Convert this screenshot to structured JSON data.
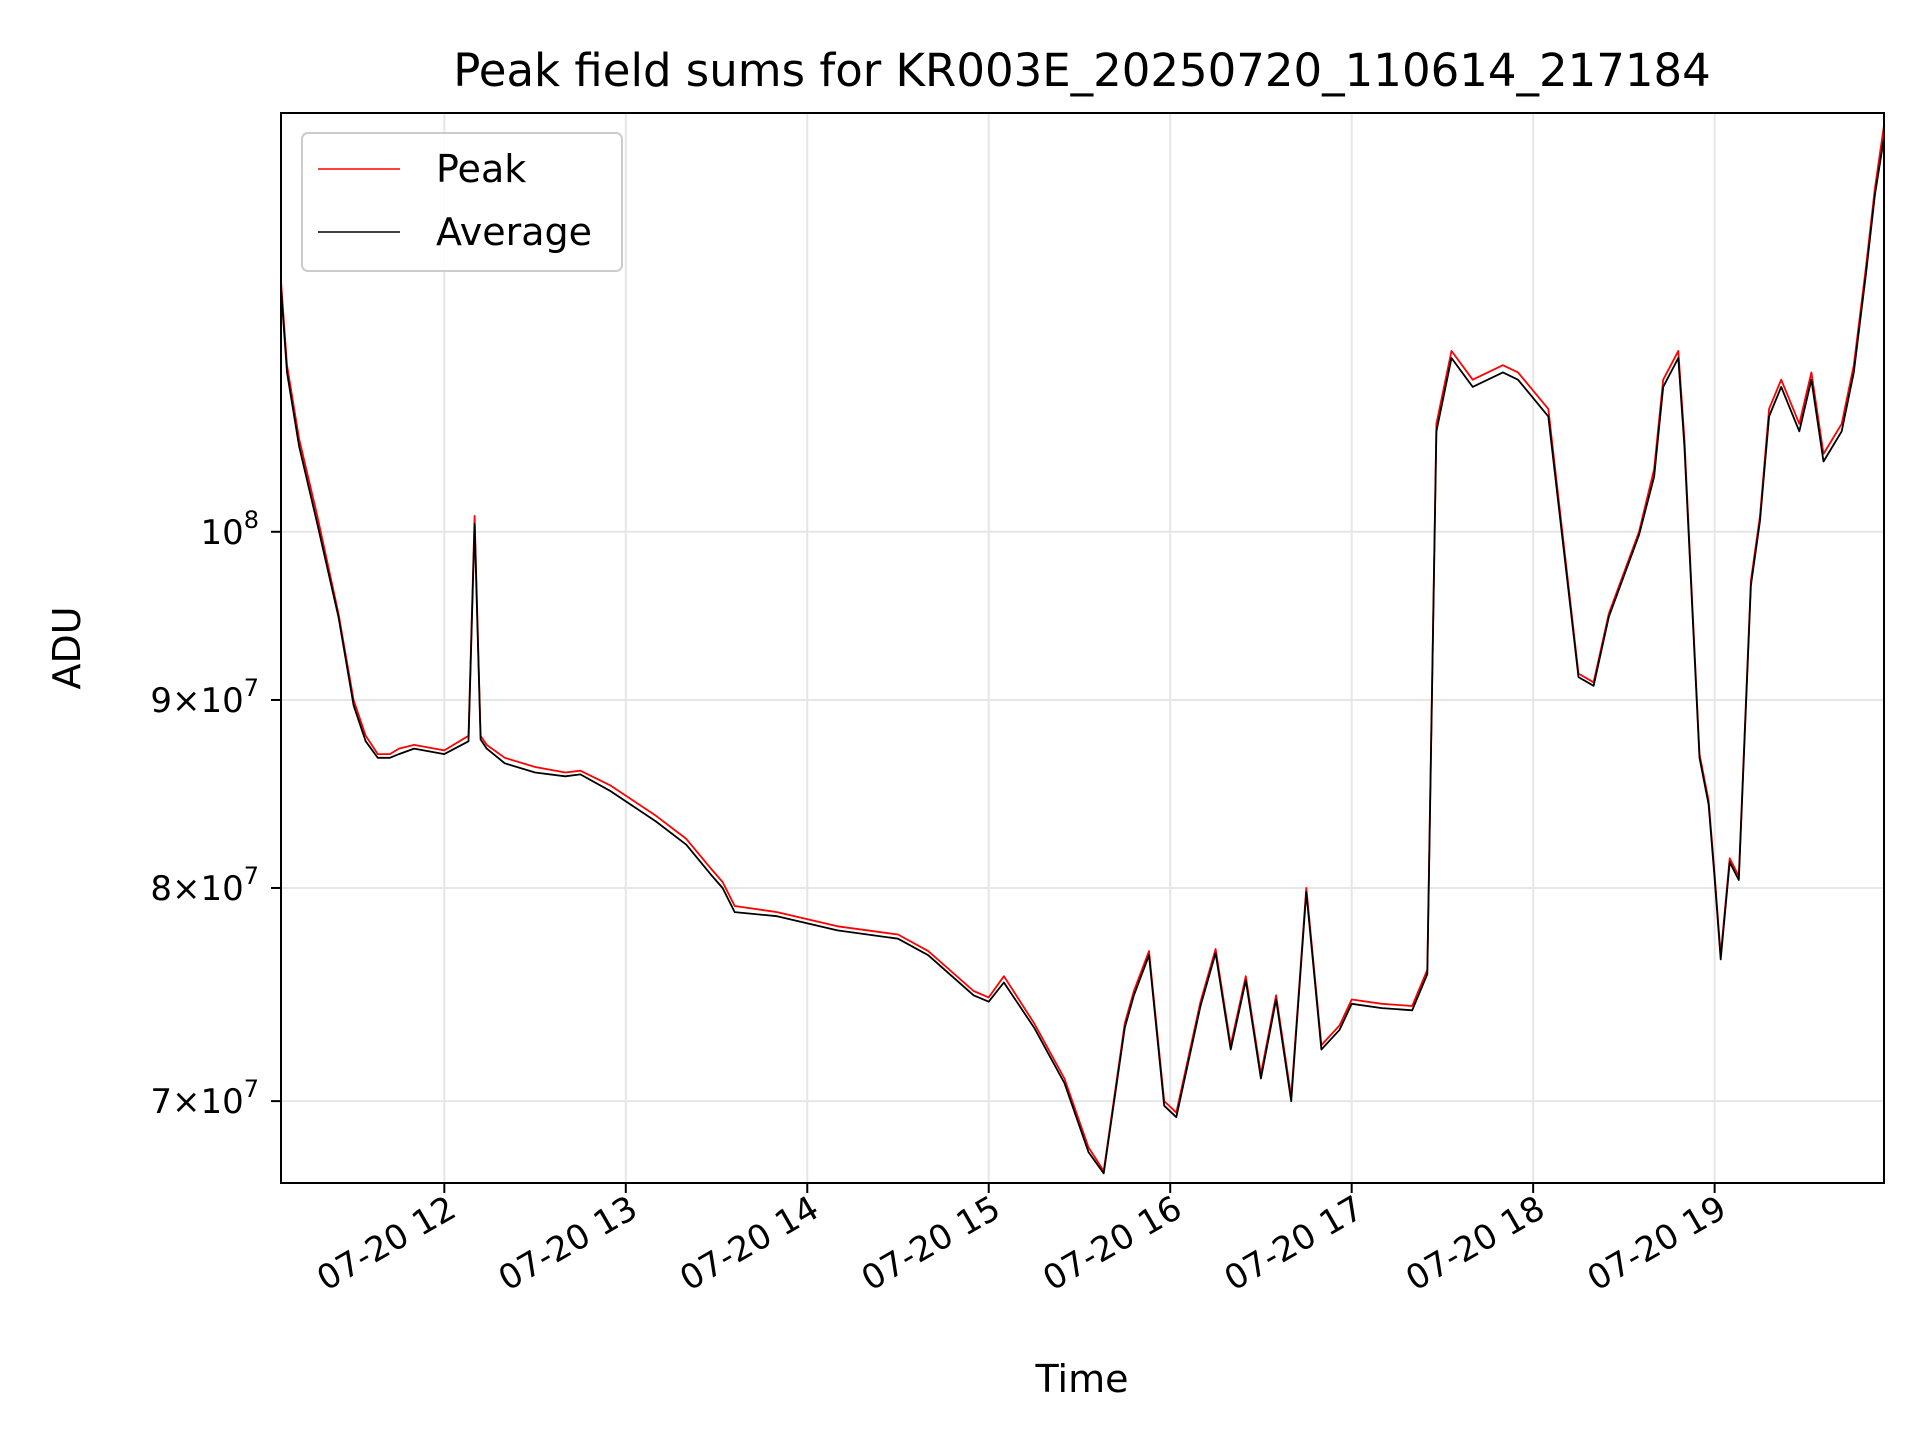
{
  "chart_data": {
    "type": "line",
    "title": "Peak field sums for KR003E_20250720_110614_217184",
    "xlabel": "Time",
    "ylabel": "ADU",
    "yscale": "log",
    "grid": true,
    "legend_position": "upper left",
    "xlim": [
      "07-20 11:06",
      "07-20 19:56"
    ],
    "ylim": [
      66500000,
      130000000
    ],
    "x_ticks": [
      {
        "value": "07-20 12:00",
        "label": "07-20 12"
      },
      {
        "value": "07-20 13:00",
        "label": "07-20 13"
      },
      {
        "value": "07-20 14:00",
        "label": "07-20 14"
      },
      {
        "value": "07-20 15:00",
        "label": "07-20 15"
      },
      {
        "value": "07-20 16:00",
        "label": "07-20 16"
      },
      {
        "value": "07-20 17:00",
        "label": "07-20 17"
      },
      {
        "value": "07-20 18:00",
        "label": "07-20 18"
      },
      {
        "value": "07-20 19:00",
        "label": "07-20 19"
      }
    ],
    "y_ticks": [
      {
        "value": 70000000,
        "label_base": "7×10",
        "label_exp": "7"
      },
      {
        "value": 80000000,
        "label_base": "8×10",
        "label_exp": "7"
      },
      {
        "value": 90000000,
        "label_base": "9×10",
        "label_exp": "7"
      },
      {
        "value": 100000000,
        "label_base": "10",
        "label_exp": "8"
      }
    ],
    "x": [
      "07-20 11:06",
      "07-20 11:08",
      "07-20 11:12",
      "07-20 11:18",
      "07-20 11:25",
      "07-20 11:30",
      "07-20 11:34",
      "07-20 11:38",
      "07-20 11:42",
      "07-20 11:45",
      "07-20 11:50",
      "07-20 12:00",
      "07-20 12:08",
      "07-20 12:10",
      "07-20 12:12",
      "07-20 12:14",
      "07-20 12:20",
      "07-20 12:30",
      "07-20 12:40",
      "07-20 12:45",
      "07-20 12:55",
      "07-20 13:10",
      "07-20 13:20",
      "07-20 13:28",
      "07-20 13:32",
      "07-20 13:36",
      "07-20 13:50",
      "07-20 14:10",
      "07-20 14:30",
      "07-20 14:40",
      "07-20 14:55",
      "07-20 15:00",
      "07-20 15:05",
      "07-20 15:15",
      "07-20 15:25",
      "07-20 15:33",
      "07-20 15:38",
      "07-20 15:45",
      "07-20 15:48",
      "07-20 15:53",
      "07-20 15:58",
      "07-20 16:02",
      "07-20 16:10",
      "07-20 16:15",
      "07-20 16:20",
      "07-20 16:25",
      "07-20 16:30",
      "07-20 16:35",
      "07-20 16:40",
      "07-20 16:45",
      "07-20 16:50",
      "07-20 16:56",
      "07-20 17:00",
      "07-20 17:10",
      "07-20 17:20",
      "07-20 17:25",
      "07-20 17:28",
      "07-20 17:33",
      "07-20 17:40",
      "07-20 17:50",
      "07-20 17:55",
      "07-20 18:05",
      "07-20 18:15",
      "07-20 18:20",
      "07-20 18:25",
      "07-20 18:35",
      "07-20 18:40",
      "07-20 18:43",
      "07-20 18:48",
      "07-20 18:50",
      "07-20 18:55",
      "07-20 18:58",
      "07-20 19:00",
      "07-20 19:02",
      "07-20 19:05",
      "07-20 19:08",
      "07-20 19:12",
      "07-20 19:15",
      "07-20 19:18",
      "07-20 19:22",
      "07-20 19:28",
      "07-20 19:32",
      "07-20 19:36",
      "07-20 19:42",
      "07-20 19:46",
      "07-20 19:50",
      "07-20 19:53",
      "07-20 19:56"
    ],
    "series": [
      {
        "name": "Peak",
        "color": "#ff0000",
        "values": [
          117000000,
          111000000,
          106000000,
          101000000,
          95000000,
          90000000,
          88000000,
          87000000,
          87000000,
          87300000,
          87500000,
          87200000,
          88000000,
          101000000,
          88000000,
          87500000,
          86800000,
          86300000,
          86000000,
          86100000,
          85300000,
          83700000,
          82500000,
          81000000,
          80300000,
          79100000,
          78800000,
          78100000,
          77700000,
          76900000,
          75000000,
          74700000,
          75700000,
          73500000,
          71000000,
          68000000,
          67000000,
          73500000,
          75000000,
          76900000,
          70000000,
          69500000,
          74500000,
          77000000,
          72500000,
          75700000,
          71200000,
          74800000,
          70200000,
          80000000,
          72500000,
          73400000,
          74600000,
          74400000,
          74300000,
          76000000,
          107000000,
          112000000,
          110000000,
          111000000,
          110500000,
          108000000,
          91500000,
          91000000,
          95000000,
          100000000,
          104000000,
          110000000,
          112000000,
          106000000,
          87000000,
          84500000,
          80700000,
          76700000,
          81500000,
          80600000,
          97000000,
          101000000,
          108000000,
          110000000,
          107000000,
          110500000,
          105000000,
          107000000,
          111000000,
          118000000,
          124000000,
          129000000
        ]
      },
      {
        "name": "Average",
        "color": "#000000",
        "values": [
          116500000,
          110500000,
          105500000,
          100500000,
          94800000,
          89700000,
          87700000,
          86800000,
          86800000,
          87000000,
          87300000,
          87000000,
          87700000,
          100500000,
          87800000,
          87300000,
          86500000,
          86000000,
          85800000,
          85900000,
          85000000,
          83400000,
          82200000,
          80700000,
          80000000,
          78800000,
          78600000,
          77900000,
          77500000,
          76700000,
          74800000,
          74500000,
          75400000,
          73300000,
          70800000,
          67800000,
          66900000,
          73300000,
          74800000,
          76700000,
          69800000,
          69300000,
          74300000,
          76800000,
          72300000,
          75500000,
          71000000,
          74600000,
          70000000,
          79800000,
          72300000,
          73200000,
          74400000,
          74200000,
          74100000,
          75800000,
          106500000,
          111500000,
          109500000,
          110500000,
          110000000,
          107500000,
          91300000,
          90800000,
          94800000,
          99800000,
          103500000,
          109500000,
          111500000,
          105500000,
          86800000,
          84300000,
          80500000,
          76500000,
          81300000,
          80400000,
          96700000,
          100700000,
          107500000,
          109500000,
          106500000,
          110000000,
          104500000,
          106500000,
          110500000,
          117500000,
          123500000,
          128000000
        ]
      }
    ]
  }
}
